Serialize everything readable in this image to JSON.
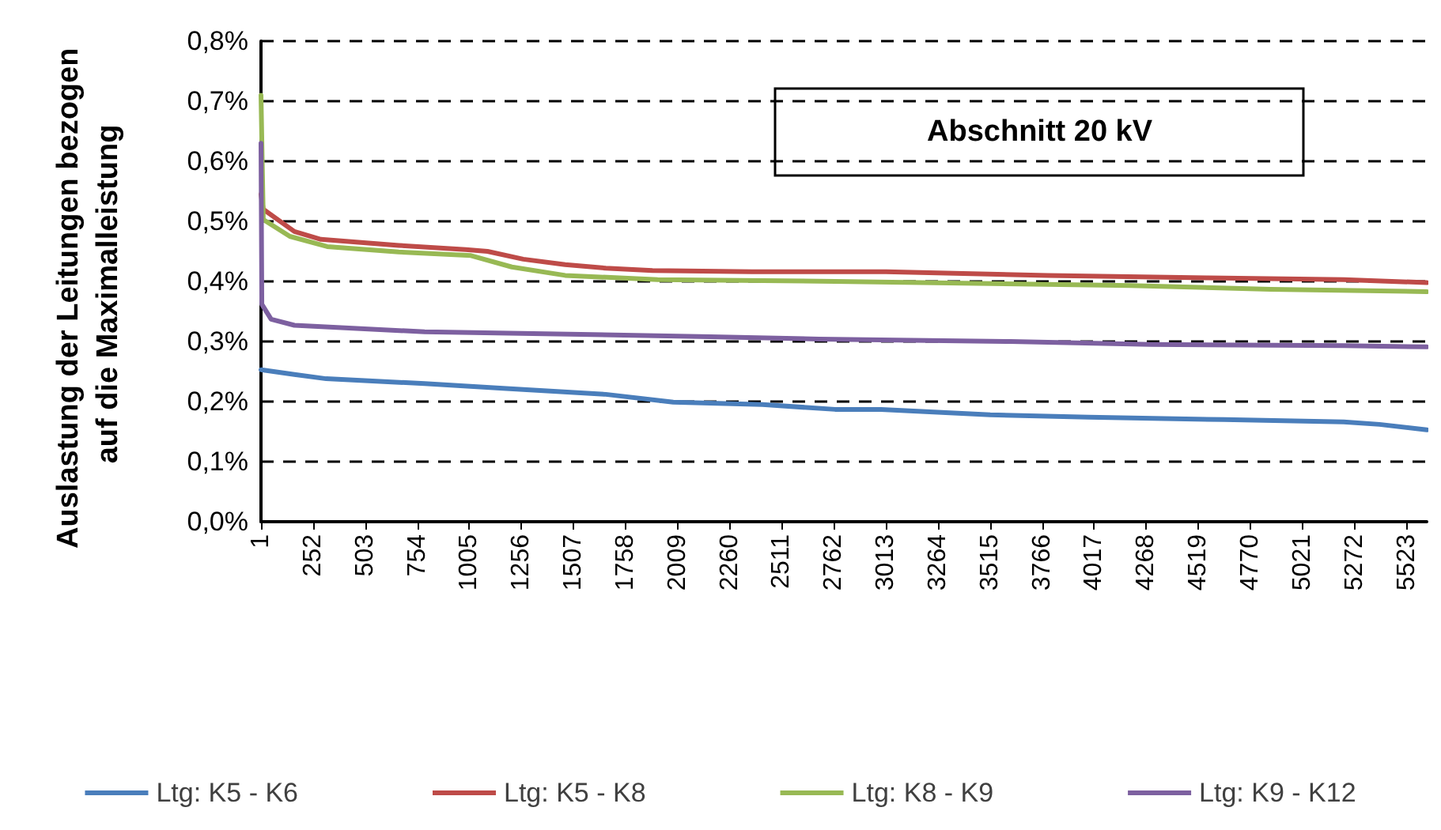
{
  "chart_data": {
    "type": "line",
    "title": "Abschnitt 20 kV",
    "ylabel": "Auslastung der Leitungen bezogen auf die Maximalleistung",
    "xlim": [
      1,
      5620
    ],
    "xticks": [
      1,
      252,
      503,
      754,
      1005,
      1256,
      1507,
      1758,
      2009,
      2260,
      2511,
      2762,
      3013,
      3264,
      3515,
      3766,
      4017,
      4268,
      4519,
      4770,
      5021,
      5272,
      5523
    ],
    "ylim": [
      0,
      0.8
    ],
    "yticks": [
      {
        "value": 0,
        "label": "0,0%"
      },
      {
        "value": 0.1,
        "label": "0,1%"
      },
      {
        "value": 0.2,
        "label": "0,2%"
      },
      {
        "value": 0.3,
        "label": "0,3%"
      },
      {
        "value": 0.4,
        "label": "0,4%"
      },
      {
        "value": 0.5,
        "label": "0,5%"
      },
      {
        "value": 0.6,
        "label": "0,6%"
      },
      {
        "value": 0.7,
        "label": "0,7%"
      },
      {
        "value": 0.8,
        "label": "0,8%"
      }
    ],
    "grid": "y",
    "legend": "bottom",
    "marker": "none",
    "line_style": "solid",
    "series": [
      {
        "name": "Ltg: K5 - K6",
        "color": "#4a7ebb",
        "x": [
          1,
          162,
          315,
          790,
          1168,
          1663,
          1988,
          2418,
          2768,
          2990,
          3516,
          3990,
          4643,
          5220,
          5392,
          5620
        ],
        "values": [
          0.253,
          0.245,
          0.238,
          0.23,
          0.222,
          0.212,
          0.199,
          0.195,
          0.187,
          0.187,
          0.178,
          0.174,
          0.17,
          0.166,
          0.162,
          0.153
        ]
      },
      {
        "name": "Ltg: K5 - K8",
        "color": "#be4b48",
        "x": [
          1,
          12,
          162,
          290,
          665,
          988,
          1093,
          1265,
          1467,
          1663,
          1888,
          2368,
          3013,
          3794,
          4567,
          5220,
          5620
        ],
        "values": [
          0.545,
          0.52,
          0.483,
          0.47,
          0.46,
          0.453,
          0.45,
          0.437,
          0.428,
          0.422,
          0.418,
          0.416,
          0.416,
          0.41,
          0.406,
          0.403,
          0.398
        ]
      },
      {
        "name": "Ltg: K8 - K9",
        "color": "#98b954",
        "x": [
          1,
          12,
          140,
          320,
          665,
          1013,
          1210,
          1467,
          1913,
          2768,
          4193,
          4868,
          5620
        ],
        "values": [
          0.71,
          0.503,
          0.475,
          0.458,
          0.449,
          0.443,
          0.424,
          0.41,
          0.403,
          0.4,
          0.393,
          0.387,
          0.383
        ]
      },
      {
        "name": "Ltg: K9 - K12",
        "color": "#7d60a0",
        "x": [
          1,
          5,
          50,
          162,
          790,
          1542,
          2165,
          2691,
          3614,
          4290,
          5220,
          5620
        ],
        "values": [
          0.63,
          0.362,
          0.337,
          0.327,
          0.316,
          0.312,
          0.308,
          0.304,
          0.3,
          0.295,
          0.293,
          0.291
        ]
      }
    ]
  }
}
